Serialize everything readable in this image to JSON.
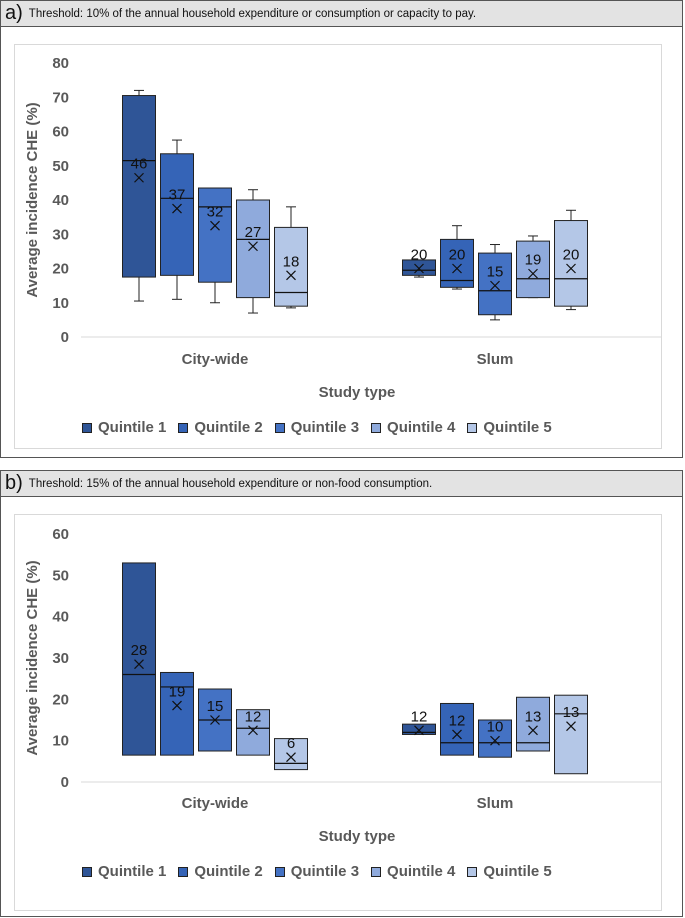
{
  "panels": [
    {
      "letter": "a)",
      "title": "Threshold: 10% of the annual household expenditure or consumption or capacity to pay.",
      "chart_data": {
        "type": "boxplot",
        "ylabel": "Average incidence CHE (%)",
        "xlabel": "Study type",
        "ylim": [
          0,
          80
        ],
        "yticks": [
          0,
          10,
          20,
          30,
          40,
          50,
          60,
          70,
          80
        ],
        "categories": [
          "City-wide",
          "Slum"
        ],
        "series": [
          {
            "name": "Quintile 1",
            "color": "#2f5597",
            "boxes": [
              {
                "min": 10.5,
                "q1": 17.5,
                "median": 51.5,
                "q3": 70.5,
                "max": 72,
                "mean": 46.5,
                "label": "46"
              },
              {
                "min": 17.5,
                "q1": 18,
                "median": 19.5,
                "q3": 22.5,
                "max": 22.5,
                "mean": 20,
                "label": "20"
              }
            ]
          },
          {
            "name": "Quintile 2",
            "color": "#3564b7",
            "boxes": [
              {
                "min": 11,
                "q1": 18,
                "median": 40.5,
                "q3": 53.5,
                "max": 57.5,
                "mean": 37.5,
                "label": "37"
              },
              {
                "min": 14,
                "q1": 14.5,
                "median": 16.5,
                "q3": 28.5,
                "max": 32.5,
                "mean": 20,
                "label": "20"
              }
            ]
          },
          {
            "name": "Quintile 3",
            "color": "#4472c4",
            "boxes": [
              {
                "min": 10,
                "q1": 16,
                "median": 38,
                "q3": 43.5,
                "max": 43.5,
                "mean": 32.5,
                "label": "32"
              },
              {
                "min": 5,
                "q1": 6.5,
                "median": 13.5,
                "q3": 24.5,
                "max": 27,
                "mean": 15,
                "label": "15"
              }
            ]
          },
          {
            "name": "Quintile 4",
            "color": "#8faadc",
            "boxes": [
              {
                "min": 7,
                "q1": 11.5,
                "median": 28.5,
                "q3": 40,
                "max": 43,
                "mean": 26.5,
                "label": "27"
              },
              {
                "min": 11.5,
                "q1": 11.5,
                "median": 17,
                "q3": 28,
                "max": 29.5,
                "mean": 18.5,
                "label": "19"
              }
            ]
          },
          {
            "name": "Quintile 5",
            "color": "#b4c7e7",
            "boxes": [
              {
                "min": 8.5,
                "q1": 9,
                "median": 13,
                "q3": 32,
                "max": 38,
                "mean": 18,
                "label": "18"
              },
              {
                "min": 8,
                "q1": 9,
                "median": 17,
                "q3": 34,
                "max": 37,
                "mean": 20,
                "label": "20"
              }
            ]
          }
        ]
      }
    },
    {
      "letter": "b)",
      "title": "Threshold: 15% of the annual household expenditure or non-food consumption.",
      "chart_data": {
        "type": "boxplot",
        "ylabel": "Average incidence CHE (%)",
        "xlabel": "Study type",
        "ylim": [
          0,
          60
        ],
        "yticks": [
          0,
          10,
          20,
          30,
          40,
          50,
          60
        ],
        "categories": [
          "City-wide",
          "Slum"
        ],
        "series": [
          {
            "name": "Quintile 1",
            "color": "#2f5597",
            "boxes": [
              {
                "q1": 6.5,
                "median": 26,
                "q3": 53,
                "mean": 28.5,
                "label": "28"
              },
              {
                "q1": 11.5,
                "median": 12,
                "q3": 14,
                "mean": 12.5,
                "label": "12"
              }
            ]
          },
          {
            "name": "Quintile 2",
            "color": "#3564b7",
            "boxes": [
              {
                "q1": 6.5,
                "median": 23,
                "q3": 26.5,
                "mean": 18.5,
                "label": "19"
              },
              {
                "q1": 6.5,
                "median": 9.5,
                "q3": 19,
                "mean": 11.5,
                "label": "12"
              }
            ]
          },
          {
            "name": "Quintile 3",
            "color": "#4472c4",
            "boxes": [
              {
                "q1": 7.5,
                "median": 15,
                "q3": 22.5,
                "mean": 15,
                "label": "15"
              },
              {
                "q1": 6,
                "median": 9.5,
                "q3": 15,
                "mean": 10,
                "label": "10"
              }
            ]
          },
          {
            "name": "Quintile 4",
            "color": "#8faadc",
            "boxes": [
              {
                "q1": 6.5,
                "median": 13,
                "q3": 17.5,
                "mean": 12.5,
                "label": "12"
              },
              {
                "q1": 7.5,
                "median": 9.5,
                "q3": 20.5,
                "mean": 12.5,
                "label": "13"
              }
            ]
          },
          {
            "name": "Quintile 5",
            "color": "#b4c7e7",
            "boxes": [
              {
                "q1": 3,
                "median": 4.5,
                "q3": 10.5,
                "mean": 6,
                "label": "6"
              },
              {
                "q1": 2,
                "median": 16.5,
                "q3": 21,
                "mean": 13.5,
                "label": "13"
              }
            ]
          }
        ]
      }
    }
  ]
}
